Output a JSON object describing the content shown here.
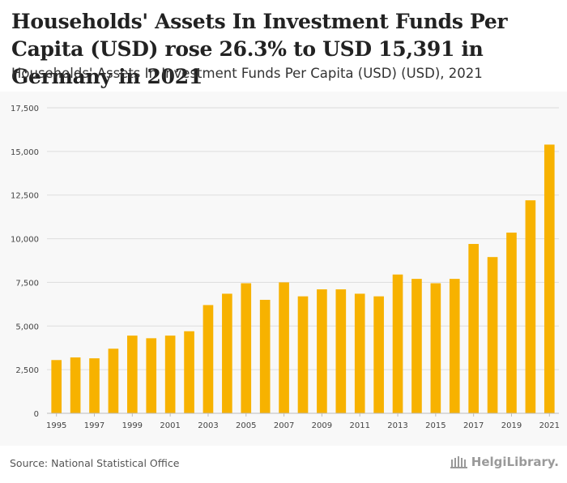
{
  "header": {
    "title": "Households' Assets In Investment Funds Per Capita (USD) rose 26.3% to USD 15,391 in Germany in 2021",
    "subtitle": "Households' Assets In Investment Funds Per Capita (USD) (USD), 2021"
  },
  "footer": {
    "source": "Source: National Statistical Office",
    "logo_text": "HelgiLibrary."
  },
  "colors": {
    "bar": "#F7B200",
    "grid": "#dddddd",
    "axis_text": "#444444"
  },
  "chart_data": {
    "type": "bar",
    "title": "Households' Assets In Investment Funds Per Capita (USD) (USD), 2021",
    "xlabel": "",
    "ylabel": "",
    "ylim": [
      0,
      17500
    ],
    "yticks": [
      0,
      2500,
      5000,
      7500,
      10000,
      12500,
      15000,
      17500
    ],
    "ytick_labels": [
      "0",
      "2,500",
      "5,000",
      "7,500",
      "10,000",
      "12,500",
      "15,000",
      "17,500"
    ],
    "categories": [
      "1995",
      "1996",
      "1997",
      "1998",
      "1999",
      "2000",
      "2001",
      "2002",
      "2003",
      "2004",
      "2005",
      "2006",
      "2007",
      "2008",
      "2009",
      "2010",
      "2011",
      "2012",
      "2013",
      "2014",
      "2015",
      "2016",
      "2017",
      "2018",
      "2019",
      "2020",
      "2021"
    ],
    "xtick_labels": [
      "1995",
      "",
      "1997",
      "",
      "1999",
      "",
      "2001",
      "",
      "2003",
      "",
      "2005",
      "",
      "2007",
      "",
      "2009",
      "",
      "2011",
      "",
      "2013",
      "",
      "2015",
      "",
      "2017",
      "",
      "2019",
      "",
      "2021"
    ],
    "values": [
      3050,
      3200,
      3150,
      3700,
      4450,
      4300,
      4450,
      4700,
      6200,
      6850,
      7450,
      6500,
      7500,
      6700,
      7100,
      7100,
      6850,
      6700,
      7950,
      7700,
      7450,
      7700,
      9700,
      8950,
      10350,
      12200,
      15391
    ],
    "grid": true,
    "legend": "none"
  }
}
